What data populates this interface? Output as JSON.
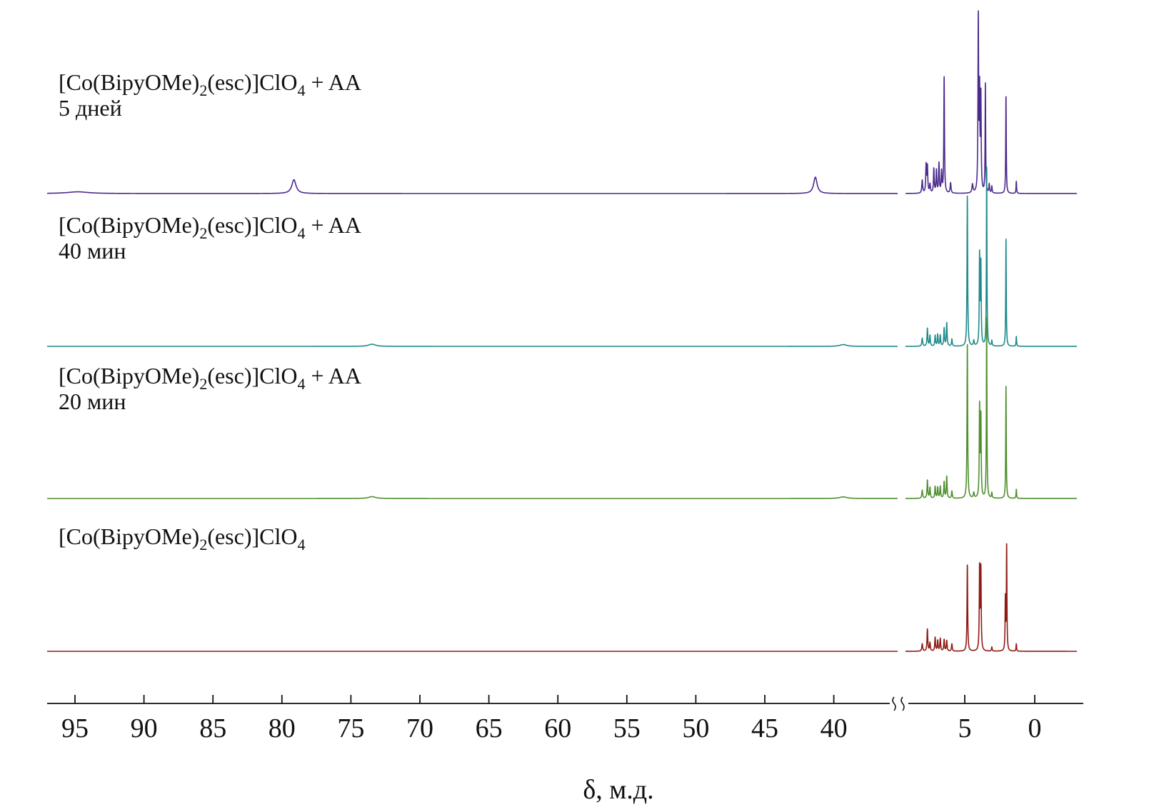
{
  "chart_data": {
    "type": "line",
    "title": "",
    "xlabel": "δ, м.д.",
    "ylabel": "",
    "axis": {
      "reversed": true,
      "broken": true,
      "segments": [
        {
          "range": [
            97,
            36
          ],
          "ticks": [
            95,
            90,
            85,
            80,
            75,
            70,
            65,
            60,
            55,
            50,
            45,
            40
          ]
        },
        {
          "range": [
            9.8,
            -3.5
          ],
          "ticks": [
            5,
            0
          ]
        }
      ],
      "tick_labels": [
        "95",
        "90",
        "85",
        "80",
        "75",
        "70",
        "65",
        "60",
        "55",
        "50",
        "45",
        "40",
        "5",
        "0"
      ]
    },
    "grid": false,
    "legend": "none",
    "series": [
      {
        "label_formula": {
          "pre": "[Co(BipyOMe)",
          "sub1": "2",
          "mid": "(esc)]ClO",
          "sub2": "4",
          "post": " + AA"
        },
        "label_time": "5 дней",
        "color": "#4b2a8c",
        "peaks": [
          {
            "x": 94.8,
            "h": 0.01,
            "w": 0.9
          },
          {
            "x": 79.3,
            "h": 0.08,
            "w": 0.18
          },
          {
            "x": 41.9,
            "h": 0.095,
            "w": 0.15
          },
          {
            "x": 8.5,
            "h": 0.075,
            "w": 0.04
          },
          {
            "x": 8.2,
            "h": 0.16,
            "w": 0.035
          },
          {
            "x": 8.1,
            "h": 0.15,
            "w": 0.035
          },
          {
            "x": 7.9,
            "h": 0.05,
            "w": 0.04
          },
          {
            "x": 7.6,
            "h": 0.14,
            "w": 0.035
          },
          {
            "x": 7.4,
            "h": 0.13,
            "w": 0.035
          },
          {
            "x": 7.2,
            "h": 0.17,
            "w": 0.035
          },
          {
            "x": 7.0,
            "h": 0.12,
            "w": 0.035
          },
          {
            "x": 6.8,
            "h": 0.67,
            "w": 0.03
          },
          {
            "x": 6.3,
            "h": 0.06,
            "w": 0.04
          },
          {
            "x": 4.6,
            "h": 0.05,
            "w": 0.05
          },
          {
            "x": 4.15,
            "h": 1.0,
            "w": 0.03
          },
          {
            "x": 4.05,
            "h": 0.55,
            "w": 0.03
          },
          {
            "x": 3.95,
            "h": 0.54,
            "w": 0.03
          },
          {
            "x": 3.6,
            "h": 0.63,
            "w": 0.025
          },
          {
            "x": 3.3,
            "h": 0.05,
            "w": 0.03
          },
          {
            "x": 3.1,
            "h": 0.04,
            "w": 0.03
          },
          {
            "x": 2.0,
            "h": 0.56,
            "w": 0.025
          },
          {
            "x": 1.2,
            "h": 0.07,
            "w": 0.025
          }
        ]
      },
      {
        "label_formula": {
          "pre": "[Co(BipyOMe)",
          "sub1": "2",
          "mid": "(esc)]ClO",
          "sub2": "4",
          "post": " + AA"
        },
        "label_time": "40 мин",
        "color": "#1f8a8c",
        "peaks": [
          {
            "x": 73.7,
            "h": 0.012,
            "w": 0.3
          },
          {
            "x": 39.9,
            "h": 0.01,
            "w": 0.3
          },
          {
            "x": 8.5,
            "h": 0.045,
            "w": 0.04
          },
          {
            "x": 8.1,
            "h": 0.1,
            "w": 0.035
          },
          {
            "x": 7.9,
            "h": 0.06,
            "w": 0.035
          },
          {
            "x": 7.5,
            "h": 0.06,
            "w": 0.035
          },
          {
            "x": 7.3,
            "h": 0.065,
            "w": 0.035
          },
          {
            "x": 7.1,
            "h": 0.06,
            "w": 0.035
          },
          {
            "x": 6.8,
            "h": 0.1,
            "w": 0.035
          },
          {
            "x": 6.6,
            "h": 0.13,
            "w": 0.035
          },
          {
            "x": 6.2,
            "h": 0.04,
            "w": 0.035
          },
          {
            "x": 5.0,
            "h": 0.84,
            "w": 0.03
          },
          {
            "x": 4.5,
            "h": 0.03,
            "w": 0.04
          },
          {
            "x": 4.05,
            "h": 0.5,
            "w": 0.03
          },
          {
            "x": 3.95,
            "h": 0.45,
            "w": 0.03
          },
          {
            "x": 3.5,
            "h": 1.0,
            "w": 0.025
          },
          {
            "x": 3.1,
            "h": 0.03,
            "w": 0.03
          },
          {
            "x": 2.0,
            "h": 0.6,
            "w": 0.025
          },
          {
            "x": 1.2,
            "h": 0.055,
            "w": 0.025
          }
        ]
      },
      {
        "label_formula": {
          "pre": "[Co(BipyOMe)",
          "sub1": "2",
          "mid": "(esc)]ClO",
          "sub2": "4",
          "post": " + AA"
        },
        "label_time": "20 мин",
        "color": "#4f8f2e",
        "peaks": [
          {
            "x": 73.7,
            "h": 0.01,
            "w": 0.3
          },
          {
            "x": 39.9,
            "h": 0.009,
            "w": 0.3
          },
          {
            "x": 8.5,
            "h": 0.045,
            "w": 0.04
          },
          {
            "x": 8.1,
            "h": 0.1,
            "w": 0.035
          },
          {
            "x": 7.9,
            "h": 0.06,
            "w": 0.035
          },
          {
            "x": 7.5,
            "h": 0.065,
            "w": 0.035
          },
          {
            "x": 7.3,
            "h": 0.06,
            "w": 0.035
          },
          {
            "x": 7.1,
            "h": 0.065,
            "w": 0.035
          },
          {
            "x": 6.8,
            "h": 0.09,
            "w": 0.035
          },
          {
            "x": 6.6,
            "h": 0.12,
            "w": 0.035
          },
          {
            "x": 6.2,
            "h": 0.04,
            "w": 0.035
          },
          {
            "x": 5.0,
            "h": 0.85,
            "w": 0.03
          },
          {
            "x": 4.5,
            "h": 0.03,
            "w": 0.04
          },
          {
            "x": 4.05,
            "h": 0.5,
            "w": 0.03
          },
          {
            "x": 3.95,
            "h": 0.44,
            "w": 0.03
          },
          {
            "x": 3.5,
            "h": 1.0,
            "w": 0.025
          },
          {
            "x": 3.1,
            "h": 0.03,
            "w": 0.03
          },
          {
            "x": 2.0,
            "h": 0.62,
            "w": 0.025
          },
          {
            "x": 1.2,
            "h": 0.05,
            "w": 0.025
          }
        ]
      },
      {
        "label_formula": {
          "pre": "[Co(BipyOMe)",
          "sub1": "2",
          "mid": "(esc)]ClO",
          "sub2": "4",
          "post": ""
        },
        "label_time": "",
        "color": "#8f1a14",
        "peaks": [
          {
            "x": 8.5,
            "h": 0.07,
            "w": 0.04
          },
          {
            "x": 8.1,
            "h": 0.21,
            "w": 0.035
          },
          {
            "x": 7.9,
            "h": 0.08,
            "w": 0.035
          },
          {
            "x": 7.5,
            "h": 0.13,
            "w": 0.035
          },
          {
            "x": 7.3,
            "h": 0.1,
            "w": 0.035
          },
          {
            "x": 7.1,
            "h": 0.12,
            "w": 0.035
          },
          {
            "x": 6.8,
            "h": 0.11,
            "w": 0.035
          },
          {
            "x": 6.6,
            "h": 0.1,
            "w": 0.035
          },
          {
            "x": 6.2,
            "h": 0.07,
            "w": 0.035
          },
          {
            "x": 5.0,
            "h": 0.82,
            "w": 0.03
          },
          {
            "x": 4.05,
            "h": 0.78,
            "w": 0.03
          },
          {
            "x": 3.95,
            "h": 0.77,
            "w": 0.03
          },
          {
            "x": 3.1,
            "h": 0.04,
            "w": 0.03
          },
          {
            "x": 2.05,
            "h": 0.49,
            "w": 0.025
          },
          {
            "x": 1.95,
            "h": 1.0,
            "w": 0.025
          },
          {
            "x": 1.2,
            "h": 0.07,
            "w": 0.025
          }
        ]
      }
    ]
  }
}
